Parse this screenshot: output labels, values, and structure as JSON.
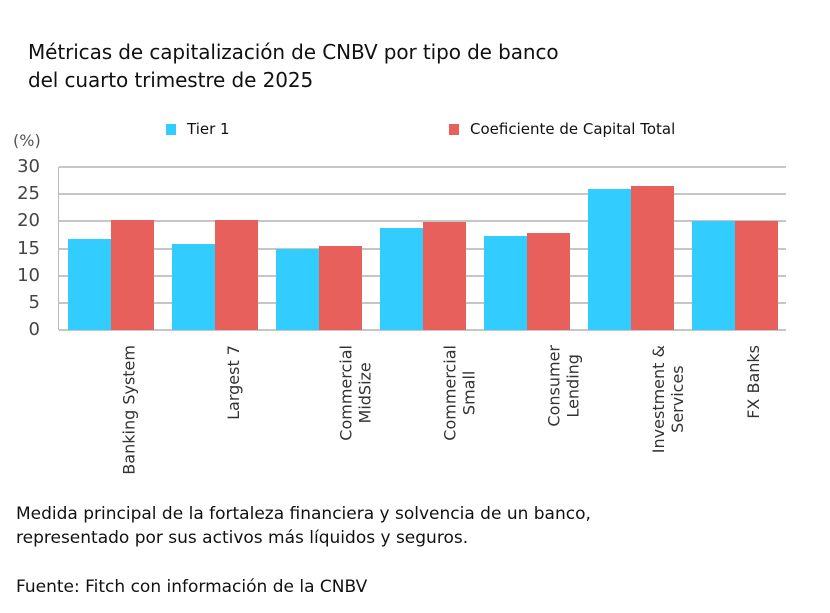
{
  "title": {
    "line1": "Métricas de capitalización de CNBV por tipo de banco",
    "line2": "del cuarto trimestre de 2025"
  },
  "legend": [
    {
      "label": "Tier 1",
      "color": "#33CCFF"
    },
    {
      "label": "Coeficiente de Capital Total",
      "color": "#E8605C"
    }
  ],
  "y_unit": "(%)",
  "y_ticks": [
    "30",
    "25",
    "20",
    "15",
    "10",
    "5",
    "0"
  ],
  "categories": [
    {
      "line1": "Banking System",
      "line2": ""
    },
    {
      "line1": "Largest 7",
      "line2": ""
    },
    {
      "line1": "Commercial",
      "line2": "MidSize"
    },
    {
      "line1": "Commercial",
      "line2": "Small"
    },
    {
      "line1": "Consumer",
      "line2": "Lending"
    },
    {
      "line1": "Investment &",
      "line2": "Services"
    },
    {
      "line1": "FX Banks",
      "line2": ""
    }
  ],
  "footnote": {
    "line1": "Medida principal de la fortaleza financiera y solvencia de un banco,",
    "line2": "representado por sus activos más líquidos y seguros."
  },
  "source": "Fuente: Fitch con información de la CNBV",
  "chart_data": {
    "type": "bar",
    "title": "Métricas de capitalización de CNBV por tipo de banco del cuarto trimestre de 2025",
    "xlabel": "",
    "ylabel": "(%)",
    "ylim": [
      0,
      30
    ],
    "yticks": [
      0,
      5,
      10,
      15,
      20,
      25,
      30
    ],
    "grid": true,
    "legend_position": "top",
    "categories": [
      "Banking System",
      "Largest 7",
      "Commercial MidSize",
      "Commercial Small",
      "Consumer Lending",
      "Investment & Services",
      "FX Banks"
    ],
    "series": [
      {
        "name": "Tier 1",
        "color": "#33CCFF",
        "values": [
          16.8,
          15.8,
          15.0,
          18.7,
          17.3,
          25.9,
          20.0
        ]
      },
      {
        "name": "Coeficiente de Capital Total",
        "color": "#E8605C",
        "values": [
          20.2,
          20.3,
          15.4,
          19.9,
          17.9,
          26.5,
          20.0
        ]
      }
    ]
  }
}
